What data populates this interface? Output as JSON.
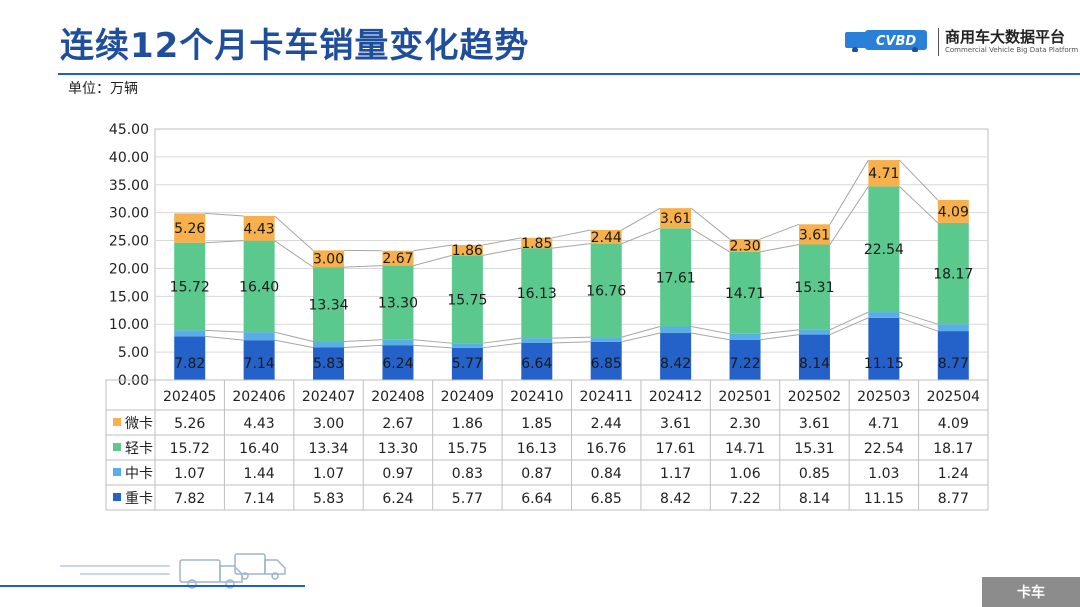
{
  "title": "连续12个月卡车销量变化趋势",
  "logo": {
    "text_cn": "商用车大数据平台",
    "text_en": "Commercial Vehicle Big Data Platform",
    "mark": "CVBD"
  },
  "unit_label": "单位：万辆",
  "footer_tag": "卡车",
  "colors": {
    "weika": "#f7b04b",
    "qingka": "#5bc98e",
    "zhongka_mid": "#5aaee6",
    "zhongka_heavy": "#2461c9",
    "title": "#1f4e9c"
  },
  "chart_data": {
    "type": "bar",
    "stacked": true,
    "categories": [
      "202405",
      "202406",
      "202407",
      "202408",
      "202409",
      "202410",
      "202411",
      "202412",
      "202501",
      "202502",
      "202503",
      "202504"
    ],
    "series": [
      {
        "name": "重卡",
        "values": [
          7.82,
          7.14,
          5.83,
          6.24,
          5.77,
          6.64,
          6.85,
          8.42,
          7.22,
          8.14,
          11.15,
          8.77
        ]
      },
      {
        "name": "中卡",
        "values": [
          1.07,
          1.44,
          1.07,
          0.97,
          0.83,
          0.87,
          0.84,
          1.17,
          1.06,
          0.85,
          1.03,
          1.24
        ]
      },
      {
        "name": "轻卡",
        "values": [
          15.72,
          16.4,
          13.34,
          13.3,
          15.75,
          16.13,
          16.76,
          17.61,
          14.71,
          15.31,
          22.54,
          18.17
        ]
      },
      {
        "name": "微卡",
        "values": [
          5.26,
          4.43,
          3.0,
          2.67,
          1.86,
          1.85,
          2.44,
          3.61,
          2.3,
          3.61,
          4.71,
          4.09
        ]
      }
    ],
    "table_rows": [
      {
        "name": "微卡",
        "values": [
          "5.26",
          "4.43",
          "3.00",
          "2.67",
          "1.86",
          "1.85",
          "2.44",
          "3.61",
          "2.30",
          "3.61",
          "4.71",
          "4.09"
        ]
      },
      {
        "name": "轻卡",
        "values": [
          "15.72",
          "16.40",
          "13.34",
          "13.30",
          "15.75",
          "16.13",
          "16.76",
          "17.61",
          "14.71",
          "15.31",
          "22.54",
          "18.17"
        ]
      },
      {
        "name": "中卡",
        "values": [
          "1.07",
          "1.44",
          "1.07",
          "0.97",
          "0.83",
          "0.87",
          "0.84",
          "1.17",
          "1.06",
          "0.85",
          "1.03",
          "1.24"
        ]
      },
      {
        "name": "重卡",
        "values": [
          "7.82",
          "7.14",
          "5.83",
          "6.24",
          "5.77",
          "6.64",
          "6.85",
          "8.42",
          "7.22",
          "8.14",
          "11.15",
          "8.77"
        ]
      }
    ],
    "y_ticks": [
      "0.00",
      "5.00",
      "10.00",
      "15.00",
      "20.00",
      "25.00",
      "30.00",
      "35.00",
      "40.00",
      "45.00"
    ],
    "ylim": [
      0,
      45
    ],
    "grid": true,
    "legend": "data-table"
  }
}
